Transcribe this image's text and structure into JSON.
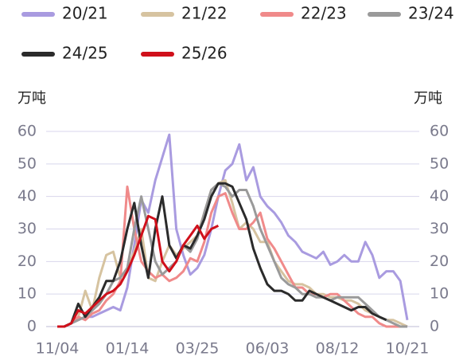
{
  "chart_data": {
    "type": "line",
    "y_label": "万吨",
    "y2_label": "万吨",
    "categories": [
      "11/04",
      null,
      null,
      null,
      null,
      null,
      null,
      null,
      null,
      null,
      "01/14",
      null,
      null,
      null,
      null,
      null,
      null,
      null,
      null,
      null,
      "03/25",
      null,
      null,
      null,
      null,
      null,
      null,
      null,
      null,
      null,
      "06/03",
      null,
      null,
      null,
      null,
      null,
      null,
      null,
      null,
      null,
      "08/12",
      null,
      null,
      null,
      null,
      null,
      null,
      null,
      null,
      null,
      "10/21"
    ],
    "ylim": [
      0,
      60
    ],
    "yticks": [
      0,
      10,
      20,
      30,
      40,
      50,
      60
    ],
    "y2lim": [
      0,
      60
    ],
    "y2ticks": [
      0,
      10,
      20,
      30,
      40,
      50,
      60
    ],
    "grid": true,
    "series": [
      {
        "name": "20/21",
        "color": "#a99be0",
        "values": [
          0,
          0,
          1,
          2,
          3,
          3,
          4,
          5,
          6,
          5,
          12,
          25,
          39,
          35,
          45,
          52,
          59,
          30,
          22,
          16,
          18,
          22,
          30,
          40,
          48,
          50,
          56,
          45,
          49,
          40,
          37,
          35,
          32,
          28,
          26,
          23,
          22,
          21,
          23,
          19,
          20,
          22,
          20,
          20,
          26,
          22,
          15,
          17,
          17,
          14,
          2
        ]
      },
      {
        "name": "21/22",
        "color": "#d6c3a0",
        "values": [
          0,
          0,
          1,
          3,
          11,
          5,
          15,
          22,
          23,
          15,
          18,
          23,
          30,
          15,
          14,
          20,
          25,
          22,
          24,
          26,
          28,
          35,
          42,
          44,
          45,
          38,
          30,
          32,
          30,
          26,
          26,
          20,
          17,
          14,
          13,
          13,
          12,
          10,
          10,
          9,
          9,
          8,
          8,
          7,
          5,
          4,
          3,
          2,
          2,
          1,
          0
        ]
      },
      {
        "name": "22/23",
        "color": "#f08a8a",
        "values": [
          0,
          0,
          1,
          3,
          2,
          4,
          5,
          8,
          10,
          14,
          43,
          30,
          20,
          17,
          15,
          16,
          14,
          15,
          17,
          21,
          20,
          26,
          35,
          40,
          41,
          35,
          30,
          30,
          32,
          35,
          27,
          24,
          20,
          16,
          12,
          12,
          10,
          10,
          9,
          10,
          10,
          8,
          6,
          4,
          3,
          3,
          1,
          0,
          0,
          0,
          0
        ]
      },
      {
        "name": "23/24",
        "color": "#9a9a9a",
        "values": [
          0,
          0,
          1,
          2,
          3,
          5,
          7,
          10,
          14,
          15,
          18,
          30,
          40,
          30,
          20,
          16,
          18,
          20,
          25,
          23,
          27,
          35,
          42,
          44,
          43,
          40,
          42,
          42,
          37,
          30,
          25,
          20,
          15,
          13,
          12,
          10,
          10,
          9,
          9,
          8,
          9,
          9,
          9,
          9,
          7,
          5,
          3,
          2,
          1,
          0,
          0
        ]
      },
      {
        "name": "24/25",
        "color": "#2b2b2b",
        "values": [
          0,
          0,
          1,
          7,
          3,
          6,
          9,
          14,
          14,
          20,
          30,
          38,
          25,
          15,
          30,
          40,
          25,
          21,
          25,
          24,
          28,
          33,
          40,
          44,
          44,
          43,
          38,
          33,
          24,
          18,
          13,
          11,
          11,
          10,
          8,
          8,
          11,
          10,
          9,
          8,
          7,
          6,
          5,
          6,
          6,
          4,
          3,
          2,
          null,
          null,
          null
        ]
      },
      {
        "name": "25/26",
        "color": "#d0101b",
        "values": [
          0,
          0,
          1,
          5,
          4,
          6,
          8,
          10,
          11,
          13,
          17,
          22,
          28,
          34,
          33,
          20,
          17,
          20,
          25,
          28,
          31,
          27,
          30,
          31,
          null,
          null,
          null,
          null,
          null,
          null,
          null,
          null,
          null,
          null,
          null,
          null,
          null,
          null,
          null,
          null,
          null,
          null,
          null,
          null,
          null,
          null,
          null,
          null,
          null,
          null,
          null
        ]
      }
    ]
  }
}
